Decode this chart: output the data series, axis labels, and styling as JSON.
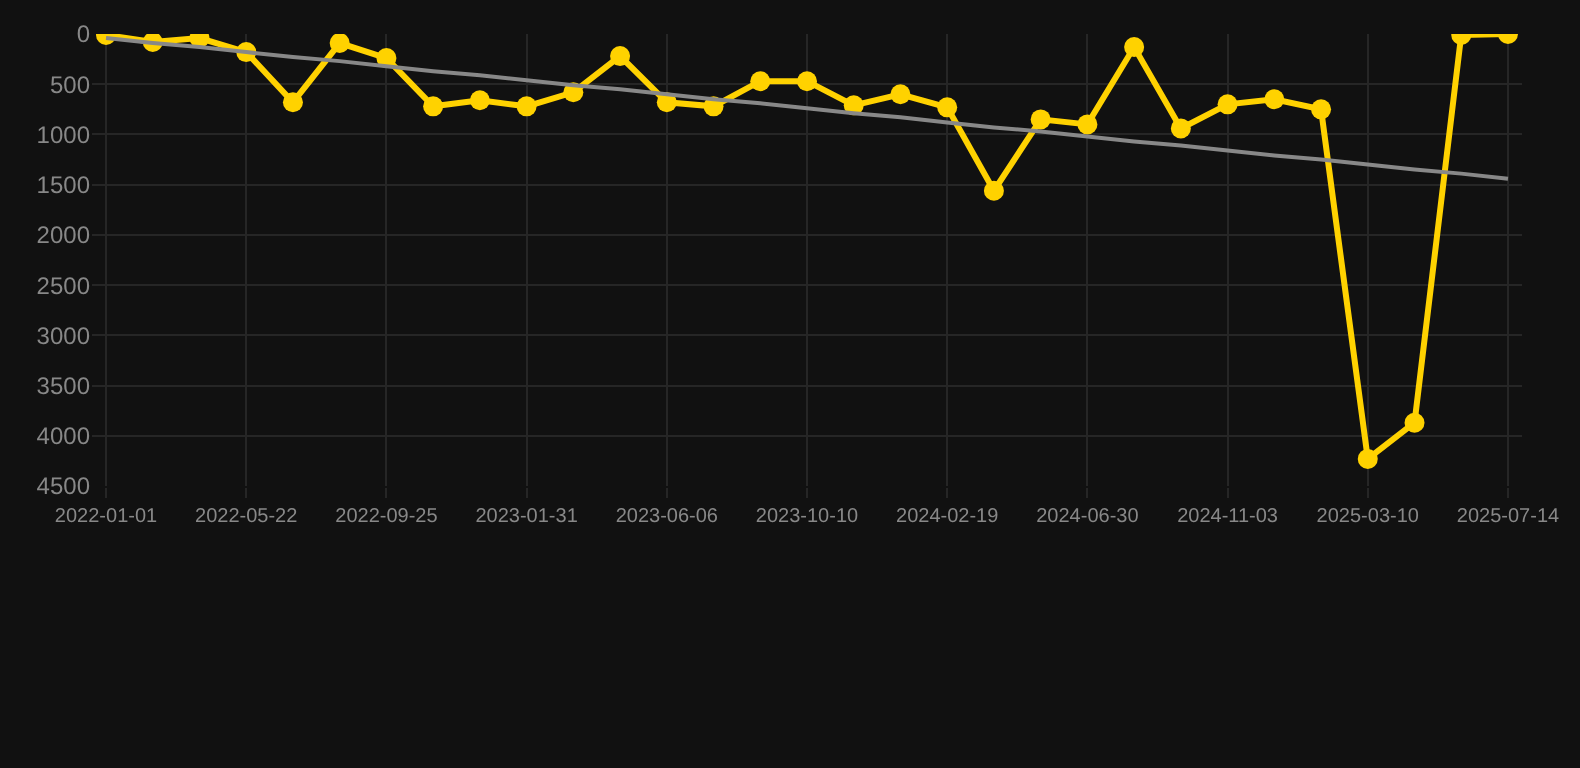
{
  "chart_data": {
    "type": "line",
    "categories": [
      "2022-01-01",
      null,
      null,
      "2022-05-22",
      null,
      null,
      "2022-09-25",
      null,
      null,
      "2023-01-31",
      null,
      null,
      "2023-06-06",
      null,
      null,
      "2023-10-10",
      null,
      null,
      "2024-02-19",
      null,
      null,
      "2024-06-30",
      null,
      null,
      "2024-11-03",
      null,
      null,
      "2025-03-10",
      null,
      null,
      "2025-07-14"
    ],
    "series": [
      {
        "color": "#ffd200",
        "values": [
          10,
          80,
          40,
          180,
          680,
          90,
          240,
          720,
          660,
          720,
          580,
          220,
          680,
          720,
          470,
          470,
          710,
          600,
          730,
          1560,
          850,
          900,
          130,
          940,
          700,
          650,
          750,
          4230,
          3870,
          10,
          0
        ]
      },
      {
        "type": "line",
        "color": "#888888",
        "marker": "none",
        "values": [
          40,
          90,
          130,
          180,
          230,
          270,
          320,
          370,
          410,
          460,
          510,
          550,
          600,
          650,
          690,
          740,
          790,
          830,
          880,
          930,
          970,
          1020,
          1070,
          1110,
          1160,
          1210,
          1250,
          1300,
          1350,
          1390,
          1440
        ]
      }
    ],
    "ylim": [
      4500,
      0
    ],
    "yticks": [
      0,
      500,
      1000,
      1500,
      2000,
      2500,
      3000,
      3500,
      4000,
      4500
    ],
    "grid": true,
    "marker": "circle",
    "line_style": "solid"
  }
}
